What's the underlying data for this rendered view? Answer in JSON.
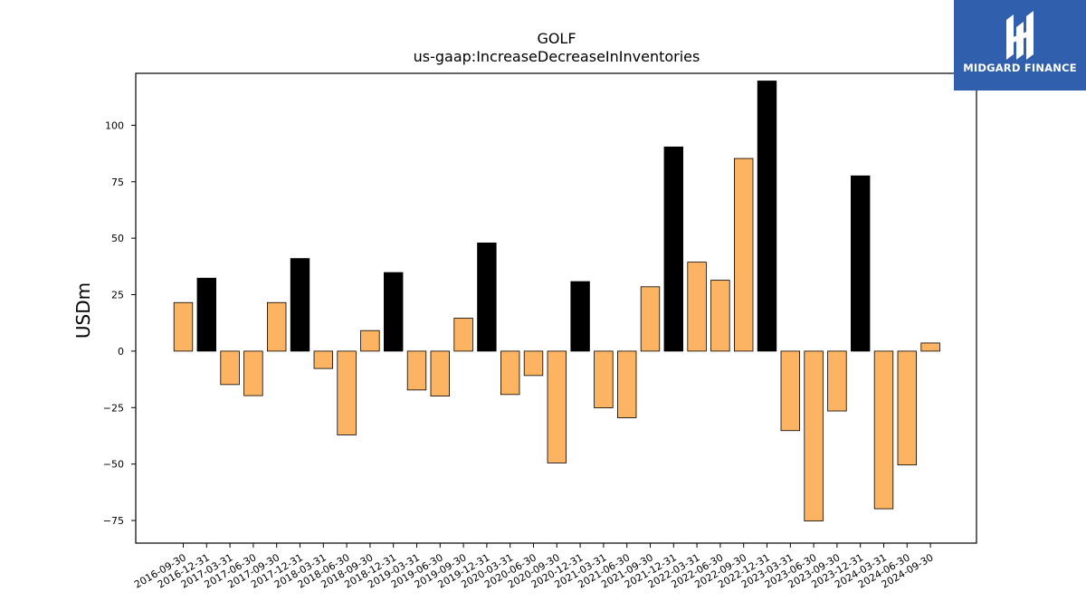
{
  "logo": {
    "text": "MIDGARD FINANCE",
    "background": "#2f5fad"
  },
  "chart_data": {
    "type": "bar",
    "title": "GOLF",
    "subtitle": "us-gaap:IncreaseDecreaseInInventories",
    "ylabel": "USDm",
    "xlabel": "",
    "ylim": [
      -85,
      123
    ],
    "yticks": [
      -75,
      -50,
      -25,
      0,
      25,
      50,
      75,
      100
    ],
    "categories": [
      "2016-09-30",
      "2016-12-31",
      "2017-03-31",
      "2017-06-30",
      "2017-09-30",
      "2017-12-31",
      "2018-03-31",
      "2018-06-30",
      "2018-09-30",
      "2018-12-31",
      "2019-03-31",
      "2019-06-30",
      "2019-09-30",
      "2019-12-31",
      "2020-03-31",
      "2020-06-30",
      "2020-09-30",
      "2020-12-31",
      "2021-03-31",
      "2021-06-30",
      "2021-09-30",
      "2021-12-31",
      "2022-03-31",
      "2022-06-30",
      "2022-09-30",
      "2022-12-31",
      "2023-03-31",
      "2023-06-30",
      "2023-09-30",
      "2023-12-31",
      "2024-03-31",
      "2024-06-30",
      "2024-09-30"
    ],
    "values": [
      21.5,
      32.3,
      -14.8,
      -19.7,
      21.5,
      41.0,
      -7.7,
      -37.1,
      9.1,
      34.8,
      -17.2,
      -19.9,
      14.6,
      47.9,
      -19.2,
      -10.8,
      -49.5,
      30.8,
      -25.1,
      -29.5,
      28.5,
      90.4,
      39.4,
      31.4,
      85.3,
      119.6,
      -35.2,
      -75.2,
      -26.5,
      77.6,
      -69.8,
      -50.4,
      3.6
    ],
    "highlight": [
      false,
      true,
      false,
      false,
      false,
      true,
      false,
      false,
      false,
      true,
      false,
      false,
      false,
      true,
      false,
      false,
      false,
      true,
      false,
      false,
      false,
      true,
      false,
      false,
      false,
      true,
      false,
      false,
      false,
      true,
      false,
      false,
      false
    ],
    "colors": {
      "normal": "#fdb462",
      "highlight": "#000000",
      "edge": "#000000"
    },
    "grid": false,
    "legend": "none"
  }
}
